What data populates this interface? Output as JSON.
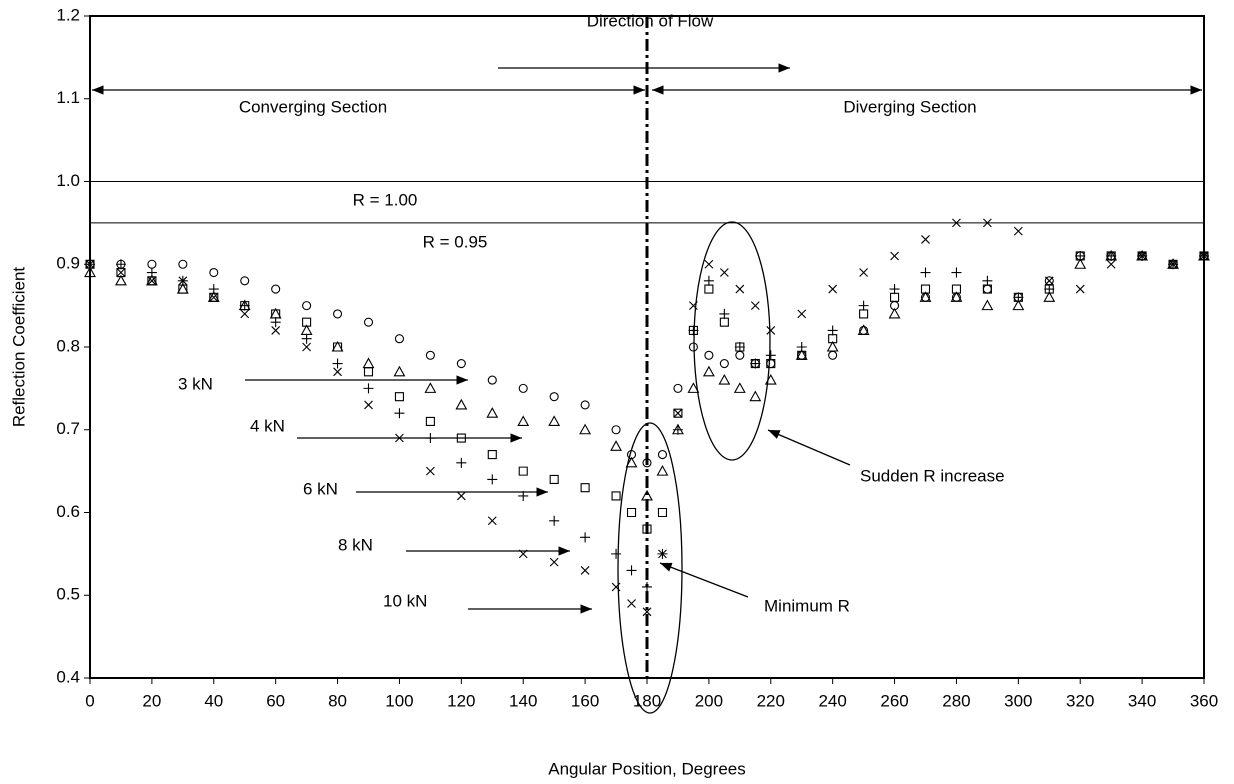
{
  "chart_data": {
    "type": "scatter",
    "x_label": "Angular Position, Degrees",
    "y_label": "Reflection Coefficient",
    "xlim": [
      0,
      360
    ],
    "ylim": [
      0.4,
      1.2
    ],
    "xticks": [
      0,
      20,
      40,
      60,
      80,
      100,
      120,
      140,
      160,
      180,
      200,
      220,
      240,
      260,
      280,
      300,
      320,
      340,
      360
    ],
    "yticks": [
      0.4,
      0.5,
      0.6,
      0.7,
      0.8,
      0.9,
      {
        "value": 1,
        "label": "1.0"
      },
      1.1,
      1.2
    ],
    "reference_lines": [
      {
        "value": 1,
        "label": "R = 1.00"
      },
      {
        "value": 0.95,
        "label": "R = 0.95"
      }
    ],
    "center_line": 180,
    "annotations": [
      "Direction of Flow",
      "Converging Section",
      "Diverging Section",
      "Sudden R increase",
      "Minimum R"
    ],
    "x": [
      0,
      10,
      20,
      30,
      40,
      50,
      60,
      70,
      80,
      90,
      100,
      110,
      120,
      130,
      140,
      150,
      160,
      170,
      175,
      180,
      185,
      190,
      195,
      200,
      205,
      210,
      215,
      220,
      230,
      240,
      250,
      260,
      270,
      280,
      290,
      300,
      310,
      320,
      330,
      340,
      350,
      360
    ],
    "series": [
      {
        "name": "3 kN",
        "marker": "circle",
        "color": "#000000",
        "values": [
          0.9,
          0.9,
          0.9,
          0.9,
          0.89,
          0.88,
          0.87,
          0.85,
          0.84,
          0.83,
          0.81,
          0.79,
          0.78,
          0.76,
          0.75,
          0.74,
          0.73,
          0.7,
          0.67,
          0.66,
          0.67,
          0.75,
          0.8,
          0.79,
          0.78,
          0.79,
          0.78,
          0.78,
          0.79,
          0.79,
          0.82,
          0.85,
          0.86,
          0.86,
          0.87,
          0.86,
          0.88,
          0.91,
          0.91,
          0.91,
          0.9,
          0.91
        ]
      },
      {
        "name": "4 kN",
        "marker": "triangle",
        "color": "#000000",
        "values": [
          0.89,
          0.88,
          0.88,
          0.87,
          0.86,
          0.85,
          0.84,
          0.82,
          0.8,
          0.78,
          0.77,
          0.75,
          0.73,
          0.72,
          0.71,
          0.71,
          0.7,
          0.68,
          0.66,
          0.62,
          0.65,
          0.7,
          0.75,
          0.77,
          0.76,
          0.75,
          0.74,
          0.76,
          0.79,
          0.8,
          0.82,
          0.84,
          0.86,
          0.86,
          0.85,
          0.85,
          0.86,
          0.9,
          0.91,
          0.91,
          0.9,
          0.91
        ]
      },
      {
        "name": "6 kN",
        "marker": "square",
        "color": "#000000",
        "values": [
          0.9,
          0.89,
          0.88,
          0.87,
          0.86,
          0.85,
          0.84,
          0.83,
          0.8,
          0.77,
          0.74,
          0.71,
          0.69,
          0.67,
          0.65,
          0.64,
          0.63,
          0.62,
          0.6,
          0.58,
          0.6,
          0.72,
          0.82,
          0.87,
          0.83,
          0.8,
          0.78,
          0.78,
          0.79,
          0.81,
          0.84,
          0.86,
          0.87,
          0.87,
          0.87,
          0.86,
          0.87,
          0.91,
          0.91,
          0.91,
          0.9,
          0.91
        ]
      },
      {
        "name": "8 kN",
        "marker": "plus",
        "color": "#000000",
        "values": [
          0.9,
          0.9,
          0.89,
          0.88,
          0.87,
          0.85,
          0.83,
          0.81,
          0.78,
          0.75,
          0.72,
          0.69,
          0.66,
          0.64,
          0.62,
          0.59,
          0.57,
          0.55,
          0.53,
          0.51,
          0.55,
          0.7,
          0.82,
          0.88,
          0.84,
          0.8,
          0.78,
          0.79,
          0.8,
          0.82,
          0.85,
          0.87,
          0.89,
          0.89,
          0.88,
          0.86,
          0.87,
          0.91,
          0.91,
          0.91,
          0.9,
          0.91
        ]
      },
      {
        "name": "10 kN",
        "marker": "cross",
        "color": "#000000",
        "values": [
          0.9,
          0.89,
          0.88,
          0.88,
          0.86,
          0.84,
          0.82,
          0.8,
          0.77,
          0.73,
          0.69,
          0.65,
          0.62,
          0.59,
          0.55,
          0.54,
          0.53,
          0.51,
          0.49,
          0.48,
          0.55,
          0.72,
          0.85,
          0.9,
          0.89,
          0.87,
          0.85,
          0.82,
          0.84,
          0.87,
          0.89,
          0.91,
          0.93,
          0.95,
          0.95,
          0.94,
          0.88,
          0.87,
          0.9,
          0.91,
          0.9,
          0.91
        ]
      }
    ]
  }
}
